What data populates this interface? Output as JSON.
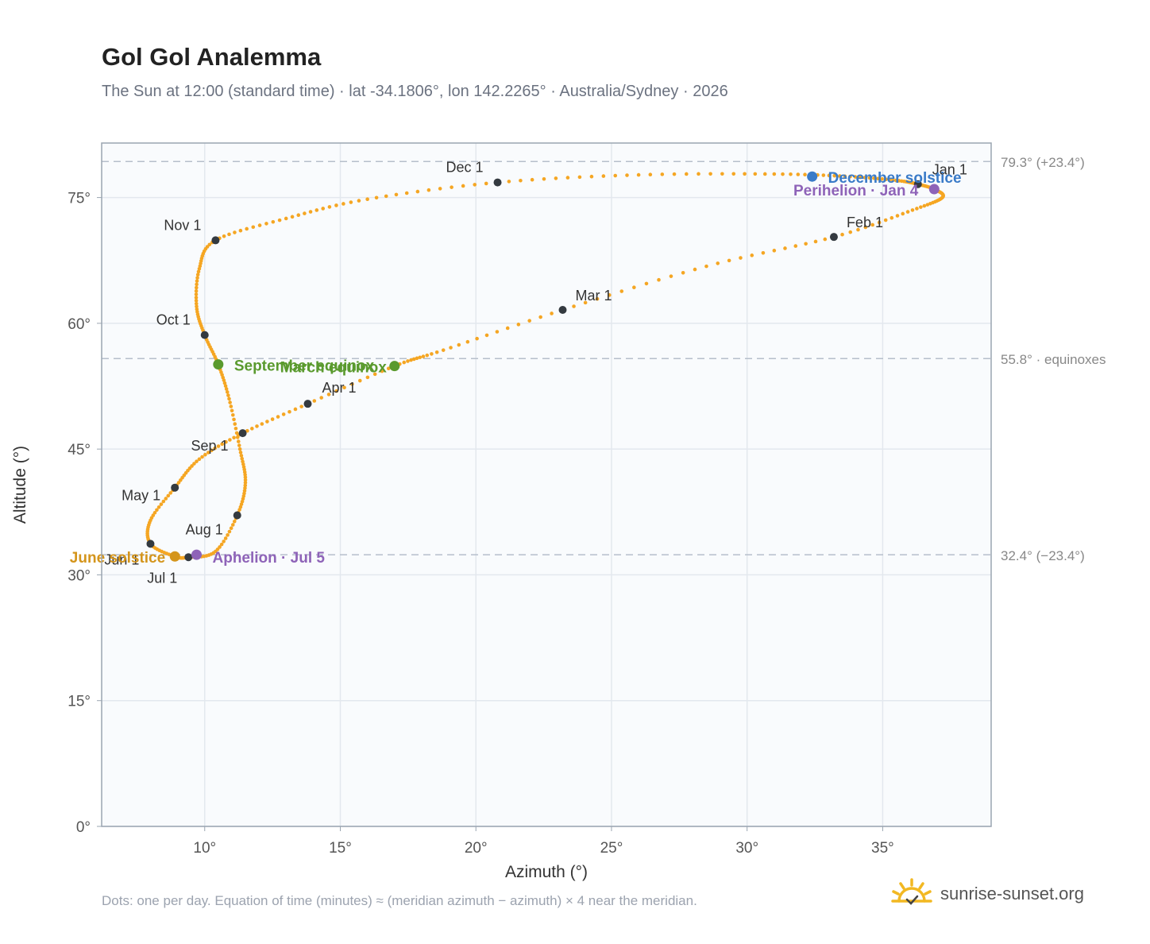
{
  "title": "Gol Gol Analemma",
  "subtitle": "The Sun at 12:00 (standard time) · lat -34.1806°, lon 142.2265° · Australia/Sydney · 2026",
  "footnote": "Dots: one per day. Equation of time (minutes) ≈ (meridian azimuth − azimuth) × 4 near the meridian.",
  "brand": "sunrise-sunset.org",
  "colors": {
    "curve": "#f5a623",
    "month_marker": "#343a40",
    "equinox": "#5a9a2e",
    "december_solstice": "#3a7bc8",
    "june_solstice": "#d4951c",
    "perihelion_aphelion": "#8e63b8",
    "reference_line": "#b6bfcb",
    "grid": "#e3e8ee",
    "plot_bg": "#f9fbfd"
  },
  "chart_data": {
    "type": "scatter",
    "xlabel": "Azimuth (°)",
    "ylabel": "Altitude (°)",
    "xlim": [
      6.2,
      39
    ],
    "ylim": [
      0,
      81.5
    ],
    "xticks": [
      10,
      15,
      20,
      25,
      30,
      35
    ],
    "yticks": [
      0,
      15,
      30,
      45,
      60,
      75
    ],
    "grid": true,
    "series": [
      {
        "name": "",
        "marker": "dot, one per day",
        "points": [
          [
            36.3,
            76.6
          ],
          [
            36.9,
            76.0
          ],
          [
            37.2,
            75.0
          ],
          [
            36.1,
            73.5
          ],
          [
            33.2,
            70.3
          ],
          [
            28.5,
            66.8
          ],
          [
            23.2,
            61.6
          ],
          [
            18.8,
            56.8
          ],
          [
            17.0,
            54.9
          ],
          [
            13.8,
            50.4
          ],
          [
            11.4,
            46.9
          ],
          [
            9.8,
            43.8
          ],
          [
            8.9,
            40.4
          ],
          [
            8.0,
            36.5
          ],
          [
            8.0,
            33.7
          ],
          [
            8.9,
            32.2
          ],
          [
            9.4,
            32.1
          ],
          [
            10.4,
            32.8
          ],
          [
            11.2,
            37.1
          ],
          [
            11.5,
            41.0
          ],
          [
            11.3,
            45.0
          ],
          [
            10.9,
            51.0
          ],
          [
            10.5,
            55.1
          ],
          [
            10.0,
            58.6
          ],
          [
            9.7,
            62.0
          ],
          [
            9.8,
            66.5
          ],
          [
            10.4,
            69.9
          ],
          [
            13.0,
            72.5
          ],
          [
            16.0,
            74.8
          ],
          [
            20.8,
            76.8
          ],
          [
            26.0,
            77.7
          ],
          [
            31.0,
            77.8
          ],
          [
            33.8,
            77.5
          ],
          [
            35.6,
            77.0
          ],
          [
            36.3,
            76.6
          ]
        ]
      }
    ],
    "month_markers": [
      {
        "label": "Jan 1",
        "x": 36.3,
        "y": 76.6
      },
      {
        "label": "Feb 1",
        "x": 33.2,
        "y": 70.3
      },
      {
        "label": "Mar 1",
        "x": 23.2,
        "y": 61.6
      },
      {
        "label": "Apr 1",
        "x": 13.8,
        "y": 50.4
      },
      {
        "label": "May 1",
        "x": 8.9,
        "y": 40.4
      },
      {
        "label": "Jun 1",
        "x": 8.0,
        "y": 33.7
      },
      {
        "label": "Jul 1",
        "x": 9.4,
        "y": 32.1
      },
      {
        "label": "Aug 1",
        "x": 11.2,
        "y": 37.1
      },
      {
        "label": "Sep 1",
        "x": 11.4,
        "y": 46.9
      },
      {
        "label": "Oct 1",
        "x": 10.0,
        "y": 58.6
      },
      {
        "label": "Nov 1",
        "x": 10.4,
        "y": 69.9
      },
      {
        "label": "Dec 1",
        "x": 20.8,
        "y": 76.8
      }
    ],
    "events": [
      {
        "label": "December solstice",
        "x": 32.4,
        "y": 77.5,
        "color": "#3a7bc8"
      },
      {
        "label": "Perihelion · Jan 4",
        "x": 36.9,
        "y": 76.0,
        "color": "#8e63b8"
      },
      {
        "label": "March equinox",
        "x": 17.0,
        "y": 54.9,
        "color": "#5a9a2e"
      },
      {
        "label": "September equinox",
        "x": 10.5,
        "y": 55.1,
        "color": "#5a9a2e"
      },
      {
        "label": "June solstice",
        "x": 8.9,
        "y": 32.2,
        "color": "#d4951c"
      },
      {
        "label": "Aphelion · Jul 5",
        "x": 9.7,
        "y": 32.4,
        "color": "#8e63b8"
      }
    ],
    "reference_lines": [
      {
        "y": 79.3,
        "label": "79.3° (+23.4°)"
      },
      {
        "y": 55.8,
        "label": "55.8° · equinoxes"
      },
      {
        "y": 32.4,
        "label": "32.4° (−23.4°)"
      }
    ]
  }
}
